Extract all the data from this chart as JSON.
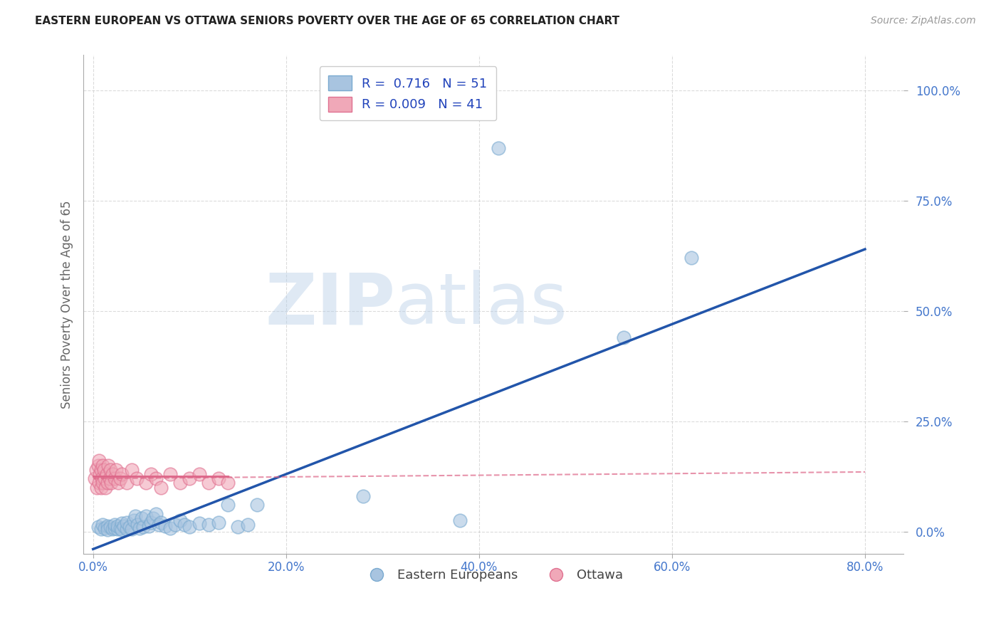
{
  "title": "EASTERN EUROPEAN VS OTTAWA SENIORS POVERTY OVER THE AGE OF 65 CORRELATION CHART",
  "source": "Source: ZipAtlas.com",
  "xlabel_ticks": [
    "0.0%",
    "20.0%",
    "40.0%",
    "60.0%",
    "80.0%"
  ],
  "ylabel_ticks": [
    "0.0%",
    "25.0%",
    "50.0%",
    "75.0%",
    "100.0%"
  ],
  "xlabel_tick_vals": [
    0.0,
    0.2,
    0.4,
    0.6,
    0.8
  ],
  "ylabel_tick_vals": [
    0.0,
    0.25,
    0.5,
    0.75,
    1.0
  ],
  "xlim": [
    -0.01,
    0.84
  ],
  "ylim": [
    -0.05,
    1.08
  ],
  "ylabel": "Seniors Poverty Over the Age of 65",
  "legend_blue_r": "0.716",
  "legend_blue_n": "51",
  "legend_pink_r": "0.009",
  "legend_pink_n": "41",
  "legend_label1": "Eastern Europeans",
  "legend_label2": "Ottawa",
  "watermark_zip": "ZIP",
  "watermark_atlas": "atlas",
  "blue_color": "#a8c4e0",
  "blue_edge_color": "#7aaad0",
  "pink_color": "#f0a8b8",
  "pink_edge_color": "#e07090",
  "line_blue": "#2255aa",
  "line_pink": "#dd6688",
  "background": "#ffffff",
  "grid_color": "#cccccc",
  "blue_scatter_x": [
    0.005,
    0.008,
    0.01,
    0.012,
    0.015,
    0.015,
    0.018,
    0.02,
    0.022,
    0.022,
    0.025,
    0.025,
    0.028,
    0.03,
    0.03,
    0.032,
    0.035,
    0.035,
    0.038,
    0.04,
    0.042,
    0.044,
    0.046,
    0.048,
    0.05,
    0.052,
    0.055,
    0.058,
    0.06,
    0.062,
    0.065,
    0.068,
    0.07,
    0.075,
    0.08,
    0.085,
    0.09,
    0.095,
    0.1,
    0.11,
    0.12,
    0.13,
    0.14,
    0.15,
    0.16,
    0.17,
    0.28,
    0.38,
    0.42,
    0.55,
    0.62
  ],
  "blue_scatter_y": [
    0.01,
    0.005,
    0.015,
    0.008,
    0.012,
    0.004,
    0.01,
    0.006,
    0.008,
    0.015,
    0.005,
    0.012,
    0.008,
    0.018,
    0.004,
    0.012,
    0.006,
    0.02,
    0.01,
    0.005,
    0.025,
    0.035,
    0.015,
    0.008,
    0.03,
    0.01,
    0.035,
    0.012,
    0.02,
    0.03,
    0.04,
    0.015,
    0.02,
    0.012,
    0.008,
    0.015,
    0.025,
    0.015,
    0.01,
    0.018,
    0.015,
    0.02,
    0.06,
    0.01,
    0.015,
    0.06,
    0.08,
    0.025,
    0.87,
    0.44,
    0.62
  ],
  "pink_scatter_x": [
    0.002,
    0.003,
    0.004,
    0.005,
    0.006,
    0.006,
    0.007,
    0.008,
    0.008,
    0.009,
    0.01,
    0.01,
    0.011,
    0.012,
    0.013,
    0.014,
    0.015,
    0.016,
    0.017,
    0.018,
    0.019,
    0.02,
    0.022,
    0.024,
    0.026,
    0.028,
    0.03,
    0.035,
    0.04,
    0.045,
    0.055,
    0.06,
    0.065,
    0.07,
    0.08,
    0.09,
    0.1,
    0.11,
    0.12,
    0.13,
    0.14
  ],
  "pink_scatter_y": [
    0.12,
    0.14,
    0.1,
    0.15,
    0.11,
    0.16,
    0.13,
    0.1,
    0.14,
    0.12,
    0.15,
    0.11,
    0.14,
    0.12,
    0.1,
    0.13,
    0.11,
    0.15,
    0.12,
    0.14,
    0.11,
    0.13,
    0.12,
    0.14,
    0.11,
    0.12,
    0.13,
    0.11,
    0.14,
    0.12,
    0.11,
    0.13,
    0.12,
    0.1,
    0.13,
    0.11,
    0.12,
    0.13,
    0.11,
    0.12,
    0.11
  ],
  "blue_line_x": [
    0.0,
    0.8
  ],
  "blue_line_y": [
    -0.04,
    0.64
  ],
  "pink_line_x": [
    0.0,
    0.8
  ],
  "pink_line_y": [
    0.12,
    0.135
  ],
  "pink_solid_line_x": [
    0.0,
    0.14
  ],
  "pink_solid_line_y": [
    0.125,
    0.125
  ]
}
